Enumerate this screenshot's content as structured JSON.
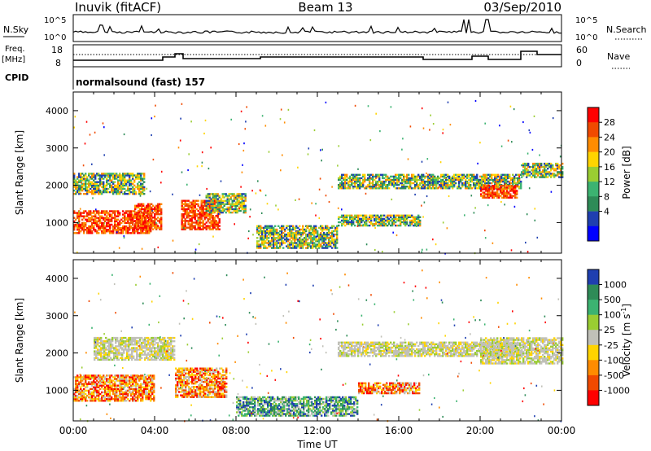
{
  "header": {
    "station": "Inuvik (fitACF)",
    "beam": "Beam 13",
    "date": "03/Sep/2010"
  },
  "panels": {
    "nsky": {
      "left_label": "N.Sky",
      "right_label": "N.Search",
      "left_ticks": [
        "10^5",
        "10^0"
      ],
      "right_ticks": [
        "10^5",
        "10^0"
      ]
    },
    "freq": {
      "left_label": "Freq.",
      "left_unit": "[MHz]",
      "right_label": "Nave",
      "left_ticks": [
        "18",
        "8"
      ],
      "right_ticks": [
        "60",
        "0"
      ]
    },
    "cpid": {
      "label": "CPID",
      "value": "normalsound (fast) 157"
    }
  },
  "chart_data": [
    {
      "type": "heatmap",
      "title": "",
      "ylabel": "Slant Range [km]",
      "ylim": [
        180,
        4500
      ],
      "y_ticks": [
        "1000",
        "2000",
        "3000",
        "4000"
      ],
      "x_ticks": [
        "00:00",
        "04:00",
        "08:00",
        "12:00",
        "16:00",
        "20:00",
        "00:00"
      ],
      "colorbar": {
        "label": "Power [dB]",
        "ticks": [
          "28",
          "24",
          "20",
          "16",
          "12",
          "8",
          "4"
        ],
        "colors": [
          "#ff0000",
          "#f04a00",
          "#ff8c00",
          "#ffd400",
          "#9acd32",
          "#3cb371",
          "#2e8b57",
          "#1f3fb0",
          "#0000ff"
        ]
      },
      "regions": [
        {
          "t0": 0.0,
          "t1": 3.8,
          "r0": 700,
          "r1": 1300,
          "level": "high"
        },
        {
          "t0": 3.0,
          "t1": 4.3,
          "r0": 800,
          "r1": 1500,
          "level": "high"
        },
        {
          "t0": 5.3,
          "t1": 7.2,
          "r0": 800,
          "r1": 1600,
          "level": "high"
        },
        {
          "t0": 0.0,
          "t1": 3.5,
          "r0": 1750,
          "r1": 2300,
          "level": "mid"
        },
        {
          "t0": 6.5,
          "t1": 8.5,
          "r0": 1250,
          "r1": 1750,
          "level": "mid"
        },
        {
          "t0": 9.0,
          "t1": 13.0,
          "r0": 300,
          "r1": 900,
          "level": "mid"
        },
        {
          "t0": 13.0,
          "t1": 22.0,
          "r0": 1900,
          "r1": 2300,
          "level": "mid"
        },
        {
          "t0": 13.0,
          "t1": 17.0,
          "r0": 900,
          "r1": 1200,
          "level": "mid"
        },
        {
          "t0": 20.0,
          "t1": 21.8,
          "r0": 1650,
          "r1": 2000,
          "level": "high"
        },
        {
          "t0": 22.0,
          "t1": 24.0,
          "r0": 2200,
          "r1": 2600,
          "level": "mid"
        }
      ]
    },
    {
      "type": "heatmap",
      "title": "",
      "ylabel": "Slant Range [km]",
      "ylim": [
        180,
        4500
      ],
      "y_ticks": [
        "1000",
        "2000",
        "3000",
        "4000"
      ],
      "x_ticks": [
        "00:00",
        "04:00",
        "08:00",
        "12:00",
        "16:00",
        "20:00",
        "00:00"
      ],
      "xlabel": "Time UT",
      "colorbar": {
        "label": "Velocity [m s",
        "label_sup": "-1",
        "label_end": "]",
        "ticks": [
          "1000",
          "500",
          "100",
          "25",
          "-25",
          "-100",
          "-500",
          "-1000"
        ],
        "colors": [
          "#1f3fb0",
          "#2e8b57",
          "#3cb371",
          "#9acd32",
          "#c0c0b8",
          "#ffd400",
          "#ff8c00",
          "#f04a00",
          "#ff0000"
        ]
      },
      "regions": [
        {
          "t0": 0.0,
          "t1": 4.0,
          "r0": 700,
          "r1": 1400,
          "level": "away"
        },
        {
          "t0": 5.0,
          "t1": 7.5,
          "r0": 800,
          "r1": 1600,
          "level": "away"
        },
        {
          "t0": 1.0,
          "t1": 5.0,
          "r0": 1800,
          "r1": 2400,
          "level": "zero"
        },
        {
          "t0": 8.0,
          "t1": 14.0,
          "r0": 300,
          "r1": 800,
          "level": "toward"
        },
        {
          "t0": 13.0,
          "t1": 22.0,
          "r0": 1900,
          "r1": 2300,
          "level": "zero"
        },
        {
          "t0": 14.0,
          "t1": 17.0,
          "r0": 900,
          "r1": 1200,
          "level": "away"
        },
        {
          "t0": 20.0,
          "t1": 24.0,
          "r0": 1700,
          "r1": 2400,
          "level": "zero"
        }
      ]
    }
  ]
}
